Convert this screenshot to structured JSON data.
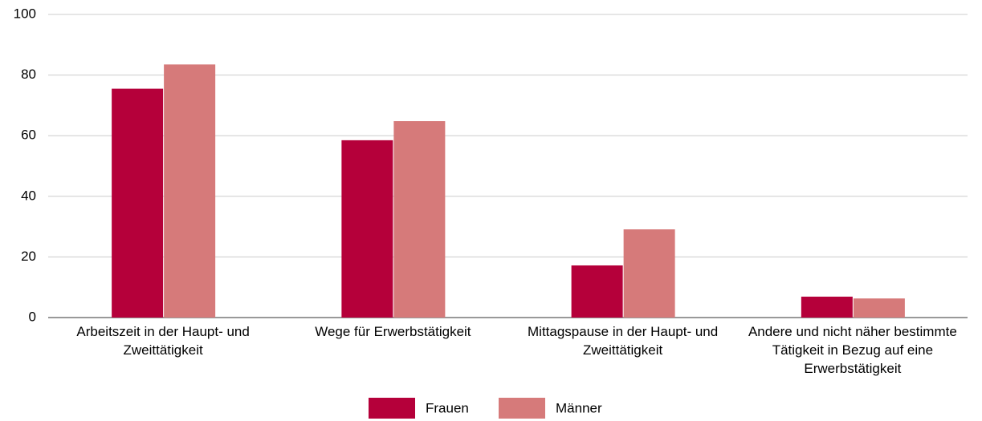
{
  "chart_data": {
    "type": "bar",
    "categories": [
      "Arbeitszeit in der Haupt- und Zweittätigkeit",
      "Wege für Erwerbstätigkeit",
      "Mittagspause in der Haupt- und Zweittätigkeit",
      "Andere und nicht näher bestimmte Tätigkeit in Bezug auf eine Erwerbstätigkeit"
    ],
    "series": [
      {
        "name": "Frauen",
        "color": "#b5003a",
        "values": [
          75.5,
          58.5,
          17.2,
          6.9
        ]
      },
      {
        "name": "Männer",
        "color": "#d67a7a",
        "values": [
          83.5,
          64.8,
          29.1,
          6.3
        ]
      }
    ],
    "ylim": [
      0,
      100
    ],
    "yticks": [
      0,
      20,
      40,
      60,
      80,
      100
    ],
    "grid": true,
    "legend": "bottom"
  }
}
